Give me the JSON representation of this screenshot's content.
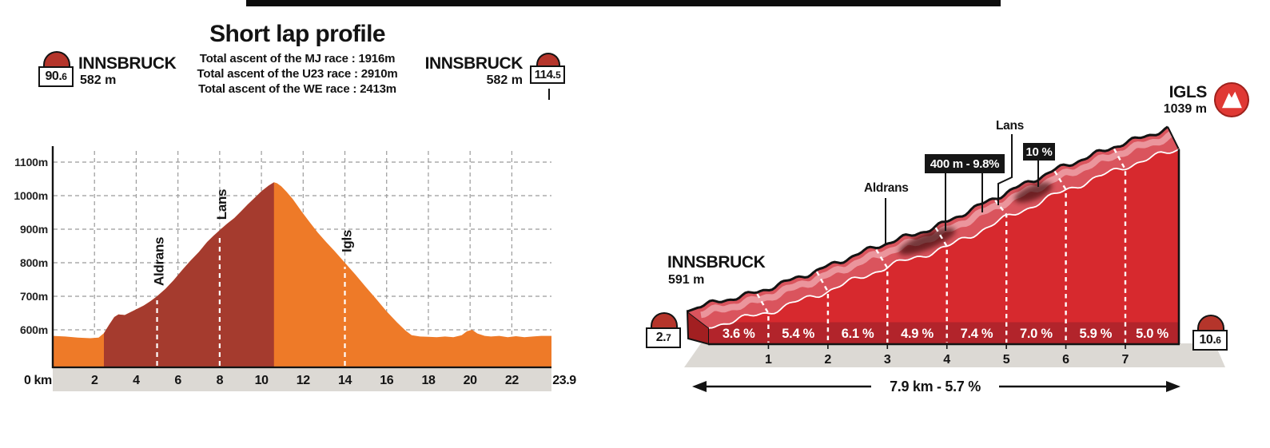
{
  "page": {
    "bg": "#ffffff",
    "top_bar_color": "#0d0d0d"
  },
  "left": {
    "title": "Short lap profile",
    "subtitle_lines": [
      "Total ascent of the MJ race : 1916m",
      "Total ascent of the U23 race : 2910m",
      "Total ascent of the WE race : 2413m"
    ],
    "start": {
      "marker_main": "90.",
      "marker_dec": "6",
      "name": "INNSBRUCK",
      "elevation": "582 m"
    },
    "end": {
      "marker_main": "114.",
      "marker_dec": "5",
      "name": "INNSBRUCK",
      "elevation": "582 m"
    },
    "x_start_label": "0 km",
    "x_end_label": "23.9"
  },
  "right": {
    "start": {
      "marker_main": "2.",
      "marker_dec": "7",
      "name": "INNSBRUCK",
      "elevation": "591 m"
    },
    "end": {
      "marker_main": "10.",
      "marker_dec": "6",
      "name": "IGLS",
      "elevation": "1039 m"
    },
    "labels": {
      "aldrans": "Aldrans",
      "lans": "Lans",
      "badge_steep": "400 m - 9.8%",
      "badge_ten": "10 %"
    },
    "total_label": "7.9 km - 5.7 %"
  },
  "chart_data": [
    {
      "type": "area",
      "title": "Short lap profile",
      "x_unit": "km",
      "y_unit": "m",
      "xlim": [
        0,
        23.9
      ],
      "ylim": [
        600,
        1100
      ],
      "y_gridlines": [
        600,
        700,
        800,
        900,
        1000,
        1100
      ],
      "x_ticks": [
        2,
        4,
        6,
        8,
        10,
        12,
        14,
        16,
        18,
        20,
        22
      ],
      "x": [
        0,
        0.6,
        1.2,
        1.8,
        2.2,
        2.45,
        2.7,
        2.95,
        3.15,
        3.45,
        3.7,
        4.0,
        4.35,
        4.7,
        5.0,
        5.4,
        5.8,
        6.2,
        6.6,
        7.0,
        7.4,
        7.7,
        8.0,
        8.35,
        8.7,
        9.0,
        9.35,
        9.7,
        10.0,
        10.35,
        10.6,
        10.75,
        10.95,
        11.2,
        11.5,
        11.9,
        12.3,
        12.7,
        13.1,
        13.5,
        14.0,
        14.5,
        15.0,
        15.5,
        16.0,
        16.5,
        16.9,
        17.2,
        17.6,
        18.0,
        18.4,
        18.8,
        19.2,
        19.6,
        19.85,
        20.1,
        20.35,
        20.7,
        21.0,
        21.4,
        21.8,
        22.2,
        22.6,
        23.0,
        23.4,
        23.9
      ],
      "y": [
        582,
        580,
        577,
        575,
        577,
        590,
        615,
        638,
        646,
        644,
        652,
        661,
        672,
        686,
        700,
        722,
        748,
        778,
        806,
        832,
        862,
        880,
        897,
        916,
        933,
        952,
        974,
        995,
        1013,
        1030,
        1040,
        1037,
        1028,
        1012,
        990,
        955,
        922,
        890,
        862,
        835,
        800,
        765,
        728,
        692,
        655,
        622,
        598,
        584,
        580,
        579,
        578,
        580,
        578,
        584,
        596,
        600,
        589,
        582,
        580,
        582,
        578,
        581,
        578,
        580,
        582,
        582
      ],
      "segments": [
        {
          "from": 0,
          "to": 2.45,
          "color": "#ee7a28"
        },
        {
          "from": 2.45,
          "to": 10.6,
          "color": "#a53b2e"
        },
        {
          "from": 10.6,
          "to": 23.9,
          "color": "#ee7a28"
        }
      ],
      "annotations": [
        {
          "label": "Aldrans",
          "km": 5
        },
        {
          "label": "Lans",
          "km": 8
        },
        {
          "label": "Igls",
          "km": 14
        }
      ],
      "start_name": "INNSBRUCK",
      "start_elev_m": 582,
      "start_km_marker": 90.6,
      "end_name": "INNSBRUCK",
      "end_elev_m": 582,
      "end_km_marker": 114.5
    },
    {
      "type": "area",
      "title": "Innsbruck - Igls climb",
      "length_km": 7.9,
      "avg_gradient_pct": 5.7,
      "start_elev_m": 591,
      "end_elev_m": 1039,
      "km_gradients_pct": [
        3.6,
        5.4,
        6.1,
        4.9,
        7.4,
        7.0,
        5.9,
        5.0
      ],
      "km_ticks": [
        1,
        2,
        3,
        4,
        5,
        6,
        7
      ],
      "annotations": [
        {
          "label": "Aldrans",
          "km": 2.95
        },
        {
          "label": "400 m - 9.8%",
          "km": 4.0
        },
        {
          "label": "Lans",
          "km": 4.9
        },
        {
          "label": "10 %",
          "km": 5.5
        }
      ],
      "start_name": "INNSBRUCK",
      "start_km_marker": 2.7,
      "end_name": "IGLS",
      "end_km_marker": 10.6
    }
  ]
}
